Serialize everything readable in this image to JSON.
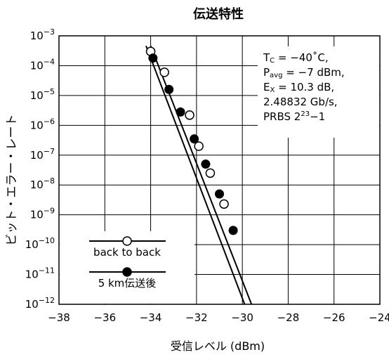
{
  "chart_data": {
    "type": "scatter",
    "title": "伝送特性",
    "xlabel": "受信レベル (dBm)",
    "ylabel": "ビット・エラー・レート",
    "xlim": [
      -38,
      -24
    ],
    "ylim_exp": [
      -12,
      -3
    ],
    "y_scale": "log",
    "x_ticks": [
      "−38",
      "−36",
      "−34",
      "−32",
      "−30",
      "−28",
      "−26",
      "−24"
    ],
    "y_ticks": [
      {
        "exp": -3,
        "label": "−3"
      },
      {
        "exp": -4,
        "label": "−4"
      },
      {
        "exp": -5,
        "label": "−5"
      },
      {
        "exp": -6,
        "label": "−6"
      },
      {
        "exp": -7,
        "label": "−7"
      },
      {
        "exp": -8,
        "label": "−8"
      },
      {
        "exp": -9,
        "label": "−9"
      },
      {
        "exp": -10,
        "label": "−10"
      },
      {
        "exp": -11,
        "label": "−11"
      },
      {
        "exp": -12,
        "label": "−12"
      }
    ],
    "y_tick_base": "10",
    "grid": true,
    "annotation": {
      "lines": [
        {
          "main": "T",
          "sub": "C",
          "rest": " = −40˚C,"
        },
        {
          "main": "P",
          "sub": "avg",
          "rest": " = −7 dBm,"
        },
        {
          "main": "E",
          "sub": "X",
          "rest": " = 10.3 dB,"
        },
        {
          "main": "2.48832 Gb/s,",
          "sub": "",
          "rest": ""
        },
        {
          "main": "PRBS 2",
          "sup": "23",
          "rest": "−1"
        }
      ]
    },
    "legend_position": "bottom-left",
    "series": [
      {
        "name": "back to back",
        "marker": "open-circle",
        "points": [
          [
            -34.0,
            0.0003
          ],
          [
            -33.4,
            6e-05
          ],
          [
            -32.3,
            2.2e-06
          ],
          [
            -31.9,
            2e-07
          ],
          [
            -31.4,
            2.5e-08
          ],
          [
            -30.8,
            2.3e-09
          ]
        ],
        "fit_line": [
          [
            -34.0,
            0.00046
          ],
          [
            -29.6,
            1e-12
          ]
        ]
      },
      {
        "name": "5 km伝送後",
        "marker": "filled-circle",
        "points": [
          [
            -33.9,
            0.00018
          ],
          [
            -33.2,
            1.6e-05
          ],
          [
            -32.7,
            2.8e-06
          ],
          [
            -32.1,
            3.5e-07
          ],
          [
            -31.6,
            5e-08
          ],
          [
            -31.0,
            5e-09
          ],
          [
            -30.4,
            3e-10
          ]
        ],
        "fit_line": [
          [
            -34.2,
            0.00046
          ],
          [
            -29.9,
            1e-12
          ]
        ]
      }
    ]
  }
}
